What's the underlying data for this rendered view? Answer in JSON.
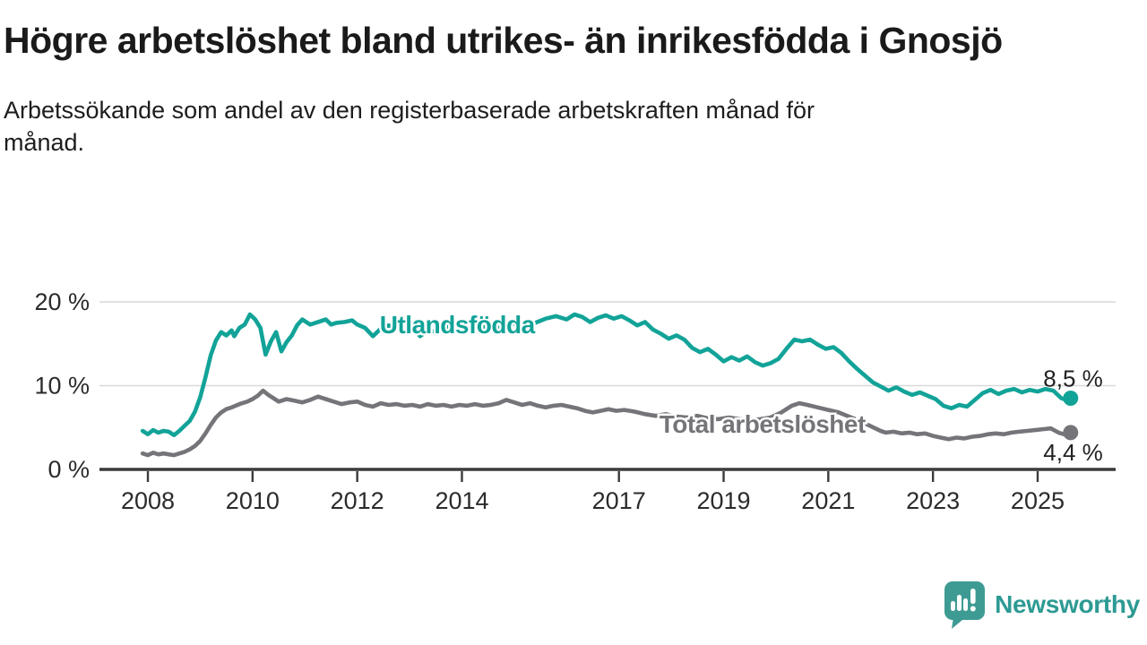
{
  "header": {
    "title": "Högre arbetslöshet bland utrikes- än inrikesfödda i Gnosjö",
    "subtitle": "Arbetssökande som andel av den registerbaserade arbetskraften månad för månad."
  },
  "chart_data": {
    "type": "line",
    "title": "Högre arbetslöshet bland utrikes- än inrikesfödda i Gnosjö",
    "xlabel": "",
    "ylabel": "",
    "grid": "horizontal",
    "legend_position": "inline-labels",
    "xlim": [
      2007.075,
      2026.49
    ],
    "ylim": [
      0,
      20.75
    ],
    "x_ticks": [
      {
        "year": 2008,
        "label": "2008"
      },
      {
        "year": 2010,
        "label": "2010"
      },
      {
        "year": 2012,
        "label": "2012"
      },
      {
        "year": 2014,
        "label": "2014"
      },
      {
        "year": 2017,
        "label": "2017"
      },
      {
        "year": 2019,
        "label": "2019"
      },
      {
        "year": 2021,
        "label": "2021"
      },
      {
        "year": 2023,
        "label": "2023"
      },
      {
        "year": 2025,
        "label": "2025"
      }
    ],
    "y_ticks": [
      {
        "value": 0,
        "label": "0 %"
      },
      {
        "value": 10,
        "label": "10 %"
      },
      {
        "value": 20,
        "label": "20 %"
      }
    ],
    "colors": {
      "axis": "#3a3a3a",
      "grid": "#d9d9d9",
      "tick_text": "#2b2b2b",
      "end_label_text": "#222222"
    },
    "series": [
      {
        "id": "utlandsfodda",
        "name": "Utlandsfödda",
        "color": "#12a398",
        "inline_label": {
          "text": "Utlandsfödda",
          "year": 2013.91,
          "value": 17.2,
          "anchor": "middle"
        },
        "end_label": {
          "text": "8,5 %",
          "year": 2025.63,
          "value": 10.85
        },
        "end_value": "8,5 %",
        "points": [
          [
            2007.9,
            4.6
          ],
          [
            2008.0,
            4.2
          ],
          [
            2008.1,
            4.7
          ],
          [
            2008.2,
            4.4
          ],
          [
            2008.3,
            4.6
          ],
          [
            2008.4,
            4.5
          ],
          [
            2008.5,
            4.1
          ],
          [
            2008.6,
            4.6
          ],
          [
            2008.7,
            5.2
          ],
          [
            2008.8,
            5.8
          ],
          [
            2008.9,
            6.9
          ],
          [
            2009.0,
            8.6
          ],
          [
            2009.1,
            11.0
          ],
          [
            2009.2,
            13.6
          ],
          [
            2009.3,
            15.4
          ],
          [
            2009.4,
            16.4
          ],
          [
            2009.5,
            16.0
          ],
          [
            2009.6,
            16.6
          ],
          [
            2009.65,
            15.9
          ],
          [
            2009.75,
            16.9
          ],
          [
            2009.85,
            17.3
          ],
          [
            2009.95,
            18.5
          ],
          [
            2010.05,
            17.9
          ],
          [
            2010.15,
            16.9
          ],
          [
            2010.25,
            13.7
          ],
          [
            2010.35,
            15.3
          ],
          [
            2010.45,
            16.4
          ],
          [
            2010.55,
            14.1
          ],
          [
            2010.65,
            15.2
          ],
          [
            2010.75,
            16.0
          ],
          [
            2010.85,
            17.2
          ],
          [
            2010.95,
            17.9
          ],
          [
            2011.1,
            17.3
          ],
          [
            2011.25,
            17.6
          ],
          [
            2011.4,
            17.9
          ],
          [
            2011.5,
            17.3
          ],
          [
            2011.6,
            17.5
          ],
          [
            2011.75,
            17.6
          ],
          [
            2011.9,
            17.8
          ],
          [
            2012.0,
            17.3
          ],
          [
            2012.15,
            16.9
          ],
          [
            2012.3,
            15.9
          ],
          [
            2012.45,
            16.8
          ],
          [
            2012.6,
            17.2
          ],
          [
            2012.75,
            16.8
          ],
          [
            2012.9,
            17.3
          ],
          [
            2013.05,
            17.0
          ],
          [
            2013.2,
            15.9
          ],
          [
            2013.35,
            16.6
          ],
          [
            2013.5,
            16.4
          ],
          [
            2013.65,
            16.9
          ],
          [
            2013.8,
            17.1
          ],
          [
            2014.0,
            16.8
          ],
          [
            2014.2,
            16.5
          ],
          [
            2014.4,
            17.0
          ],
          [
            2014.6,
            16.7
          ],
          [
            2014.8,
            17.1
          ],
          [
            2015.0,
            17.4
          ],
          [
            2015.2,
            17.0
          ],
          [
            2015.4,
            17.5
          ],
          [
            2015.6,
            18.0
          ],
          [
            2015.8,
            18.3
          ],
          [
            2016.0,
            17.9
          ],
          [
            2016.15,
            18.5
          ],
          [
            2016.3,
            18.2
          ],
          [
            2016.45,
            17.6
          ],
          [
            2016.6,
            18.1
          ],
          [
            2016.75,
            18.4
          ],
          [
            2016.9,
            18.0
          ],
          [
            2017.05,
            18.3
          ],
          [
            2017.2,
            17.8
          ],
          [
            2017.35,
            17.2
          ],
          [
            2017.5,
            17.6
          ],
          [
            2017.65,
            16.7
          ],
          [
            2017.8,
            16.2
          ],
          [
            2017.95,
            15.6
          ],
          [
            2018.1,
            16.0
          ],
          [
            2018.25,
            15.5
          ],
          [
            2018.4,
            14.5
          ],
          [
            2018.55,
            14.0
          ],
          [
            2018.7,
            14.4
          ],
          [
            2018.85,
            13.7
          ],
          [
            2019.0,
            12.9
          ],
          [
            2019.15,
            13.4
          ],
          [
            2019.3,
            13.0
          ],
          [
            2019.45,
            13.5
          ],
          [
            2019.6,
            12.8
          ],
          [
            2019.75,
            12.4
          ],
          [
            2019.9,
            12.7
          ],
          [
            2020.05,
            13.2
          ],
          [
            2020.2,
            14.4
          ],
          [
            2020.35,
            15.5
          ],
          [
            2020.5,
            15.3
          ],
          [
            2020.65,
            15.5
          ],
          [
            2020.8,
            14.9
          ],
          [
            2020.95,
            14.4
          ],
          [
            2021.1,
            14.6
          ],
          [
            2021.25,
            13.9
          ],
          [
            2021.4,
            12.9
          ],
          [
            2021.55,
            12.0
          ],
          [
            2021.7,
            11.2
          ],
          [
            2021.85,
            10.4
          ],
          [
            2022.0,
            9.9
          ],
          [
            2022.15,
            9.4
          ],
          [
            2022.3,
            9.8
          ],
          [
            2022.45,
            9.3
          ],
          [
            2022.6,
            8.9
          ],
          [
            2022.75,
            9.2
          ],
          [
            2022.9,
            8.8
          ],
          [
            2023.05,
            8.4
          ],
          [
            2023.2,
            7.6
          ],
          [
            2023.35,
            7.3
          ],
          [
            2023.5,
            7.7
          ],
          [
            2023.65,
            7.5
          ],
          [
            2023.8,
            8.3
          ],
          [
            2023.95,
            9.1
          ],
          [
            2024.1,
            9.5
          ],
          [
            2024.25,
            9.0
          ],
          [
            2024.4,
            9.4
          ],
          [
            2024.55,
            9.6
          ],
          [
            2024.7,
            9.2
          ],
          [
            2024.85,
            9.5
          ],
          [
            2025.0,
            9.3
          ],
          [
            2025.15,
            9.6
          ],
          [
            2025.3,
            9.4
          ],
          [
            2025.45,
            8.5
          ],
          [
            2025.55,
            8.3
          ],
          [
            2025.63,
            8.5
          ]
        ]
      },
      {
        "id": "total",
        "name": "Total arbetslöshet",
        "color": "#757479",
        "inline_label": {
          "text": "Total arbetslöshet",
          "year": 2019.74,
          "value": 5.35,
          "anchor": "middle"
        },
        "end_label": {
          "text": "4,4 %",
          "year": 2025.63,
          "value": 2.05
        },
        "end_value": "4,4 %",
        "points": [
          [
            2007.9,
            1.9
          ],
          [
            2008.0,
            1.7
          ],
          [
            2008.1,
            2.0
          ],
          [
            2008.2,
            1.8
          ],
          [
            2008.3,
            1.9
          ],
          [
            2008.4,
            1.8
          ],
          [
            2008.5,
            1.7
          ],
          [
            2008.6,
            1.9
          ],
          [
            2008.7,
            2.1
          ],
          [
            2008.8,
            2.4
          ],
          [
            2008.9,
            2.8
          ],
          [
            2009.0,
            3.4
          ],
          [
            2009.1,
            4.3
          ],
          [
            2009.2,
            5.3
          ],
          [
            2009.3,
            6.2
          ],
          [
            2009.4,
            6.8
          ],
          [
            2009.5,
            7.2
          ],
          [
            2009.6,
            7.4
          ],
          [
            2009.75,
            7.8
          ],
          [
            2009.9,
            8.1
          ],
          [
            2010.0,
            8.4
          ],
          [
            2010.1,
            8.8
          ],
          [
            2010.2,
            9.4
          ],
          [
            2010.3,
            8.9
          ],
          [
            2010.4,
            8.5
          ],
          [
            2010.5,
            8.1
          ],
          [
            2010.65,
            8.4
          ],
          [
            2010.8,
            8.2
          ],
          [
            2010.95,
            8.0
          ],
          [
            2011.1,
            8.3
          ],
          [
            2011.25,
            8.7
          ],
          [
            2011.4,
            8.4
          ],
          [
            2011.55,
            8.1
          ],
          [
            2011.7,
            7.8
          ],
          [
            2011.85,
            8.0
          ],
          [
            2012.0,
            8.1
          ],
          [
            2012.15,
            7.7
          ],
          [
            2012.3,
            7.5
          ],
          [
            2012.45,
            7.9
          ],
          [
            2012.6,
            7.7
          ],
          [
            2012.75,
            7.8
          ],
          [
            2012.9,
            7.6
          ],
          [
            2013.05,
            7.7
          ],
          [
            2013.2,
            7.5
          ],
          [
            2013.35,
            7.8
          ],
          [
            2013.5,
            7.6
          ],
          [
            2013.65,
            7.7
          ],
          [
            2013.8,
            7.5
          ],
          [
            2013.95,
            7.7
          ],
          [
            2014.1,
            7.6
          ],
          [
            2014.25,
            7.8
          ],
          [
            2014.4,
            7.6
          ],
          [
            2014.55,
            7.7
          ],
          [
            2014.7,
            7.9
          ],
          [
            2014.85,
            8.3
          ],
          [
            2015.0,
            8.0
          ],
          [
            2015.15,
            7.7
          ],
          [
            2015.3,
            7.9
          ],
          [
            2015.45,
            7.6
          ],
          [
            2015.6,
            7.4
          ],
          [
            2015.75,
            7.6
          ],
          [
            2015.9,
            7.7
          ],
          [
            2016.05,
            7.5
          ],
          [
            2016.2,
            7.3
          ],
          [
            2016.35,
            7.0
          ],
          [
            2016.5,
            6.8
          ],
          [
            2016.65,
            7.0
          ],
          [
            2016.8,
            7.2
          ],
          [
            2016.95,
            7.0
          ],
          [
            2017.1,
            7.1
          ],
          [
            2017.3,
            6.9
          ],
          [
            2017.5,
            6.6
          ],
          [
            2017.7,
            6.4
          ],
          [
            2017.9,
            6.6
          ],
          [
            2018.1,
            6.3
          ],
          [
            2018.3,
            6.2
          ],
          [
            2018.5,
            6.4
          ],
          [
            2018.7,
            6.1
          ],
          [
            2018.9,
            6.0
          ],
          [
            2019.1,
            6.2
          ],
          [
            2019.3,
            6.0
          ],
          [
            2019.5,
            5.9
          ],
          [
            2019.7,
            6.0
          ],
          [
            2019.9,
            6.2
          ],
          [
            2020.1,
            6.8
          ],
          [
            2020.3,
            7.6
          ],
          [
            2020.45,
            7.9
          ],
          [
            2020.6,
            7.7
          ],
          [
            2020.8,
            7.4
          ],
          [
            2021.0,
            7.1
          ],
          [
            2021.2,
            6.8
          ],
          [
            2021.4,
            6.3
          ],
          [
            2021.6,
            5.8
          ],
          [
            2021.8,
            5.2
          ],
          [
            2022.0,
            4.6
          ],
          [
            2022.1,
            4.4
          ],
          [
            2022.25,
            4.5
          ],
          [
            2022.4,
            4.3
          ],
          [
            2022.55,
            4.4
          ],
          [
            2022.7,
            4.2
          ],
          [
            2022.85,
            4.3
          ],
          [
            2023.0,
            4.0
          ],
          [
            2023.15,
            3.8
          ],
          [
            2023.3,
            3.6
          ],
          [
            2023.45,
            3.8
          ],
          [
            2023.6,
            3.7
          ],
          [
            2023.75,
            3.9
          ],
          [
            2023.9,
            4.0
          ],
          [
            2024.05,
            4.2
          ],
          [
            2024.2,
            4.3
          ],
          [
            2024.35,
            4.2
          ],
          [
            2024.5,
            4.4
          ],
          [
            2024.65,
            4.5
          ],
          [
            2024.8,
            4.6
          ],
          [
            2024.95,
            4.7
          ],
          [
            2025.1,
            4.8
          ],
          [
            2025.25,
            4.9
          ],
          [
            2025.4,
            4.4
          ],
          [
            2025.5,
            4.2
          ],
          [
            2025.63,
            4.4
          ]
        ]
      }
    ]
  },
  "footer": {
    "brand": "Newsworthy",
    "brand_color": "#2d9a93",
    "logo_color": "#3e9b94",
    "logo_icon": "speech-bubble-bar-chart-exclamation"
  }
}
